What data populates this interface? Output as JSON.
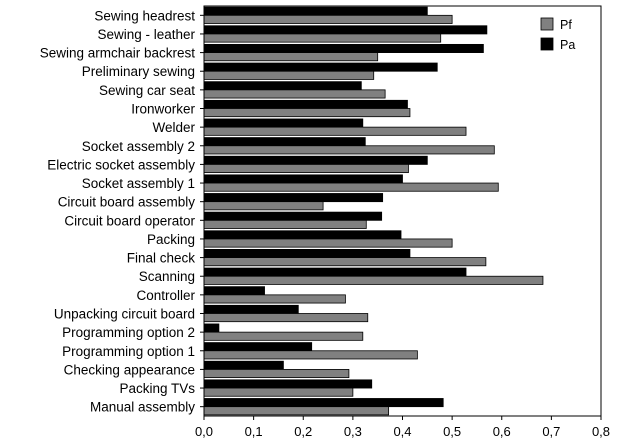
{
  "chart_data": {
    "type": "bar",
    "orientation": "horizontal",
    "categories": [
      "Sewing headrest",
      "Sewing - leather",
      "Sewing armchair backrest",
      "Preliminary sewing ",
      "Sewing car seat",
      "Ironworker",
      "Welder",
      "Socket assembly 2",
      "Electric socket assembly",
      "Socket assembly 1",
      "Circuit board assembly",
      "Circuit board operator",
      "Packing",
      "Final check",
      "Scanning",
      "Controller",
      "Unpacking circuit board",
      "Programming option 2",
      "Programming option 1",
      "Checking appearance",
      "Packing TVs",
      "Manual assembly"
    ],
    "series": [
      {
        "name": "Pa",
        "color": "#000000",
        "values": [
          0.45,
          0.57,
          0.563,
          0.47,
          0.317,
          0.41,
          0.32,
          0.325,
          0.45,
          0.4,
          0.36,
          0.358,
          0.397,
          0.415,
          0.528,
          0.122,
          0.19,
          0.03,
          0.217,
          0.16,
          0.338,
          0.482
        ]
      },
      {
        "name": "Pf",
        "color": "#808080",
        "values": [
          0.5,
          0.477,
          0.35,
          0.342,
          0.365,
          0.415,
          0.528,
          0.585,
          0.412,
          0.593,
          0.24,
          0.327,
          0.5,
          0.568,
          0.683,
          0.285,
          0.33,
          0.32,
          0.43,
          0.292,
          0.3,
          0.372
        ]
      }
    ],
    "xlim": [
      0,
      0.8
    ],
    "xticks": [
      0,
      0.1,
      0.2,
      0.3,
      0.4,
      0.5,
      0.6,
      0.7,
      0.8
    ],
    "xtick_labels": [
      "0,0",
      "0,1",
      "0,2",
      "0,3",
      "0,4",
      "0,5",
      "0,6",
      "0,7",
      "0,8"
    ],
    "legend": {
      "placement": "top-right",
      "entries": [
        {
          "label": "Pf",
          "color": "#808080"
        },
        {
          "label": "Pa",
          "color": "#000000"
        }
      ]
    },
    "grid": false,
    "title": "",
    "xlabel": "",
    "ylabel": ""
  }
}
